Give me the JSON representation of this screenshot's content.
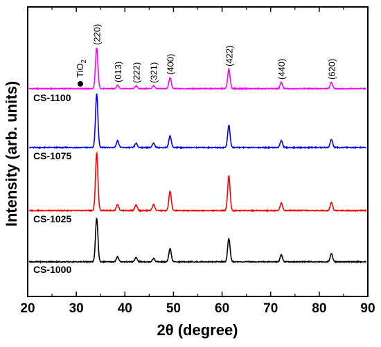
{
  "chart_data": {
    "type": "line",
    "xlabel": "2θ (degree)",
    "ylabel": "Intensity (arb. units)",
    "xlim": [
      20,
      90
    ],
    "x_ticks": [
      "20",
      "30",
      "40",
      "50",
      "60",
      "70",
      "80",
      "90"
    ],
    "y_ticks_labeled": false,
    "grid": false,
    "legend": "none (series labeled beneath each curve, left side)",
    "series": [
      {
        "name": "CS-1100",
        "color": "#ff00ff",
        "baseline": 0,
        "peaks": [
          {
            "x": 34.2,
            "height": 59
          },
          {
            "x": 38.5,
            "height": 5
          },
          {
            "x": 42.3,
            "height": 4
          },
          {
            "x": 45.9,
            "height": 4
          },
          {
            "x": 49.3,
            "height": 16
          },
          {
            "x": 61.4,
            "height": 28
          },
          {
            "x": 72.2,
            "height": 9
          },
          {
            "x": 82.5,
            "height": 9
          }
        ]
      },
      {
        "name": "CS-1075",
        "color": "#0000ff",
        "baseline": 0,
        "peaks": [
          {
            "x": 34.2,
            "height": 77
          },
          {
            "x": 38.5,
            "height": 10
          },
          {
            "x": 42.3,
            "height": 6
          },
          {
            "x": 45.9,
            "height": 6
          },
          {
            "x": 49.3,
            "height": 17
          },
          {
            "x": 61.4,
            "height": 32
          },
          {
            "x": 72.2,
            "height": 10
          },
          {
            "x": 82.5,
            "height": 12
          }
        ]
      },
      {
        "name": "CS-1025",
        "color": "#ff0000",
        "baseline": 0,
        "peaks": [
          {
            "x": 34.2,
            "height": 83
          },
          {
            "x": 38.5,
            "height": 9
          },
          {
            "x": 42.3,
            "height": 8
          },
          {
            "x": 45.9,
            "height": 9
          },
          {
            "x": 49.3,
            "height": 28
          },
          {
            "x": 61.4,
            "height": 50
          },
          {
            "x": 72.2,
            "height": 11
          },
          {
            "x": 82.5,
            "height": 12
          }
        ]
      },
      {
        "name": "CS-1000",
        "color": "#000000",
        "baseline": 0,
        "peaks": [
          {
            "x": 34.2,
            "height": 63
          },
          {
            "x": 38.5,
            "height": 7
          },
          {
            "x": 42.3,
            "height": 6
          },
          {
            "x": 45.9,
            "height": 5
          },
          {
            "x": 49.3,
            "height": 19
          },
          {
            "x": 61.4,
            "height": 34
          },
          {
            "x": 72.2,
            "height": 10
          },
          {
            "x": 82.5,
            "height": 12
          }
        ]
      }
    ],
    "annotations": [
      {
        "text": "(220)",
        "x": 34.2
      },
      {
        "text": "(013)",
        "x": 38.5
      },
      {
        "text": "(222)",
        "x": 42.3
      },
      {
        "text": "(321)",
        "x": 45.9
      },
      {
        "text": "(400)",
        "x": 49.3
      },
      {
        "text": "(422)",
        "x": 61.4
      },
      {
        "text": "(440)",
        "x": 72.2
      },
      {
        "text": "(620)",
        "x": 82.5
      }
    ],
    "marker": {
      "symbol": "●",
      "label": "TiO",
      "subscript": "2",
      "x": 30.7
    }
  }
}
